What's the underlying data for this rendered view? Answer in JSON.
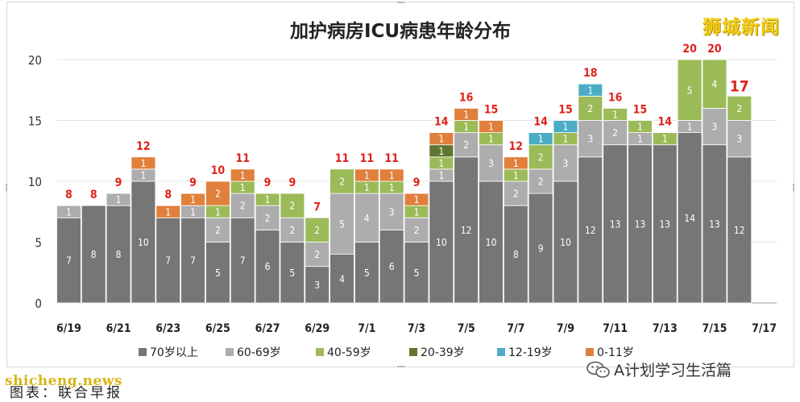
{
  "watermark": {
    "brand": "狮城新闻",
    "site": "shicheng.news"
  },
  "caption": "图表：联合早报",
  "wechat_account": "A计划学习生活篇",
  "colors": {
    "70+": "#767676",
    "60-69": "#adadad",
    "40-59": "#9bbb59",
    "20-39": "#5f7530",
    "12-19": "#4bacc6",
    "0-11": "#e0803c",
    "total_label": "#e0211b",
    "brand": "#f2cf1c"
  },
  "chart_data": {
    "type": "bar",
    "stacked": true,
    "title": "加护病房ICU病患年龄分布",
    "ylim": [
      0,
      20
    ],
    "yticks": [
      0,
      5,
      10,
      15,
      20
    ],
    "grid": true,
    "legend_position": "bottom",
    "categories": [
      "6/19",
      "6/20",
      "6/21",
      "6/22",
      "6/23",
      "6/24",
      "6/25",
      "6/26",
      "6/27",
      "6/28",
      "6/29",
      "6/30",
      "7/1",
      "7/2",
      "7/3",
      "7/4",
      "7/5",
      "7/6",
      "7/7",
      "7/8",
      "7/9",
      "7/10",
      "7/11",
      "7/12",
      "7/13",
      "7/14",
      "7/15",
      "7/16"
    ],
    "xtick_labels": [
      "6/19",
      "6/21",
      "6/23",
      "6/25",
      "6/27",
      "6/29",
      "7/1",
      "7/3",
      "7/5",
      "7/7",
      "7/9",
      "7/11",
      "7/13",
      "7/15",
      "7/17"
    ],
    "totals": [
      8,
      8,
      9,
      12,
      8,
      9,
      10,
      11,
      9,
      9,
      7,
      11,
      11,
      11,
      9,
      14,
      16,
      15,
      12,
      14,
      15,
      18,
      16,
      15,
      14,
      20,
      20,
      17
    ],
    "series": [
      {
        "name": "70岁以上",
        "key": "70+",
        "values": [
          7,
          8,
          8,
          10,
          7,
          7,
          5,
          7,
          6,
          5,
          3,
          4,
          5,
          6,
          5,
          10,
          12,
          10,
          8,
          9,
          10,
          12,
          13,
          13,
          13,
          14,
          13,
          12
        ]
      },
      {
        "name": "60-69岁",
        "key": "60-69",
        "values": [
          1,
          0,
          1,
          1,
          0,
          1,
          2,
          2,
          2,
          2,
          2,
          5,
          4,
          3,
          2,
          1,
          2,
          3,
          2,
          2,
          3,
          3,
          2,
          1,
          0,
          1,
          3,
          3
        ]
      },
      {
        "name": "40-59岁",
        "key": "40-59",
        "values": [
          0,
          0,
          0,
          0,
          0,
          0,
          1,
          1,
          1,
          2,
          2,
          2,
          1,
          1,
          1,
          1,
          1,
          1,
          1,
          2,
          1,
          2,
          1,
          1,
          1,
          5,
          4,
          2
        ]
      },
      {
        "name": "20-39岁",
        "key": "20-39",
        "values": [
          0,
          0,
          0,
          0,
          0,
          0,
          0,
          0,
          0,
          0,
          0,
          0,
          0,
          0,
          0,
          1,
          0,
          0,
          0,
          0,
          0,
          0,
          0,
          0,
          0,
          0,
          0,
          0
        ]
      },
      {
        "name": "12-19岁",
        "key": "12-19",
        "values": [
          0,
          0,
          0,
          0,
          0,
          0,
          0,
          0,
          0,
          0,
          0,
          0,
          0,
          0,
          0,
          0,
          0,
          0,
          0,
          1,
          1,
          1,
          0,
          0,
          0,
          0,
          0,
          0
        ]
      },
      {
        "name": "0-11岁",
        "key": "0-11",
        "values": [
          0,
          0,
          0,
          1,
          1,
          1,
          2,
          1,
          0,
          0,
          0,
          0,
          1,
          1,
          1,
          1,
          1,
          1,
          1,
          0,
          0,
          0,
          0,
          0,
          0,
          0,
          0,
          0
        ]
      }
    ]
  }
}
